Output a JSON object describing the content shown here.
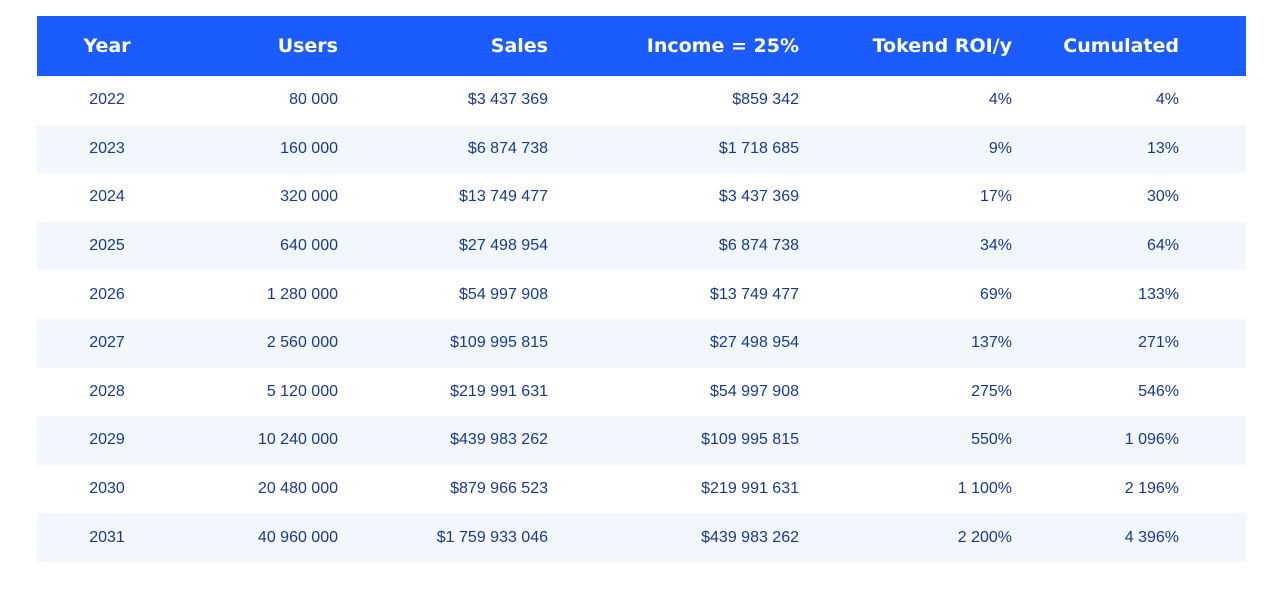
{
  "table": {
    "headers": [
      "Year",
      "Users",
      "Sales",
      "Income = 25%",
      "Tokend ROI/y",
      "Cumulated"
    ],
    "rows": [
      [
        "2022",
        "80 000",
        "$3 437 369",
        "$859 342",
        "4%",
        "4%"
      ],
      [
        "2023",
        "160 000",
        "$6 874 738",
        "$1 718 685",
        "9%",
        "13%"
      ],
      [
        "2024",
        "320 000",
        "$13 749 477",
        "$3 437 369",
        "17%",
        "30%"
      ],
      [
        "2025",
        "640 000",
        "$27 498 954",
        "$6 874 738",
        "34%",
        "64%"
      ],
      [
        "2026",
        "1 280 000",
        "$54 997 908",
        "$13 749 477",
        "69%",
        "133%"
      ],
      [
        "2027",
        "2 560 000",
        "$109 995 815",
        "$27 498 954",
        "137%",
        "271%"
      ],
      [
        "2028",
        "5 120 000",
        "$219 991 631",
        "$54 997 908",
        "275%",
        "546%"
      ],
      [
        "2029",
        "10 240 000",
        "$439 983 262",
        "$109 995 815",
        "550%",
        "1 096%"
      ],
      [
        "2030",
        "20 480 000",
        "$879 966 523",
        "$219 991 631",
        "1 100%",
        "2 196%"
      ],
      [
        "2031",
        "40 960 000",
        "$1 759 933 046",
        "$439 983 262",
        "2 200%",
        "4 396%"
      ]
    ]
  },
  "colors": {
    "header_bg": "#1a5cff",
    "header_text": "#ffffff",
    "cell_text": "#173a8f",
    "stripe_bg": "#f2f7fe"
  }
}
